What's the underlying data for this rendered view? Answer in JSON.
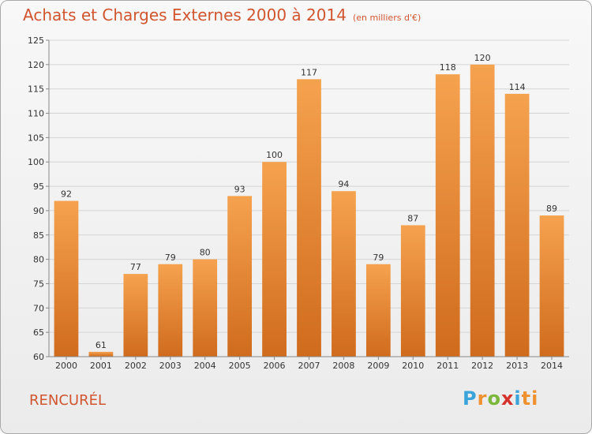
{
  "header": {
    "title": "Achats et Charges Externes 2000 à 2014",
    "subtitle": "(en milliers d'€)"
  },
  "footer": {
    "place": "RENCURÉL",
    "logo": "Proxiti"
  },
  "chart_data": {
    "type": "bar",
    "title": "Achats et Charges Externes 2000 à 2014",
    "subtitle": "(en milliers d'€)",
    "categories": [
      "2000",
      "2001",
      "2002",
      "2003",
      "2004",
      "2005",
      "2006",
      "2007",
      "2008",
      "2009",
      "2010",
      "2011",
      "2012",
      "2013",
      "2014"
    ],
    "values": [
      92,
      61,
      77,
      79,
      80,
      93,
      100,
      117,
      94,
      79,
      87,
      118,
      120,
      114,
      89
    ],
    "ylim": [
      60,
      125
    ],
    "yticks": [
      60,
      65,
      70,
      75,
      80,
      85,
      90,
      95,
      100,
      105,
      110,
      115,
      120,
      125
    ],
    "grid": true,
    "bar_color": "#e58a36"
  }
}
